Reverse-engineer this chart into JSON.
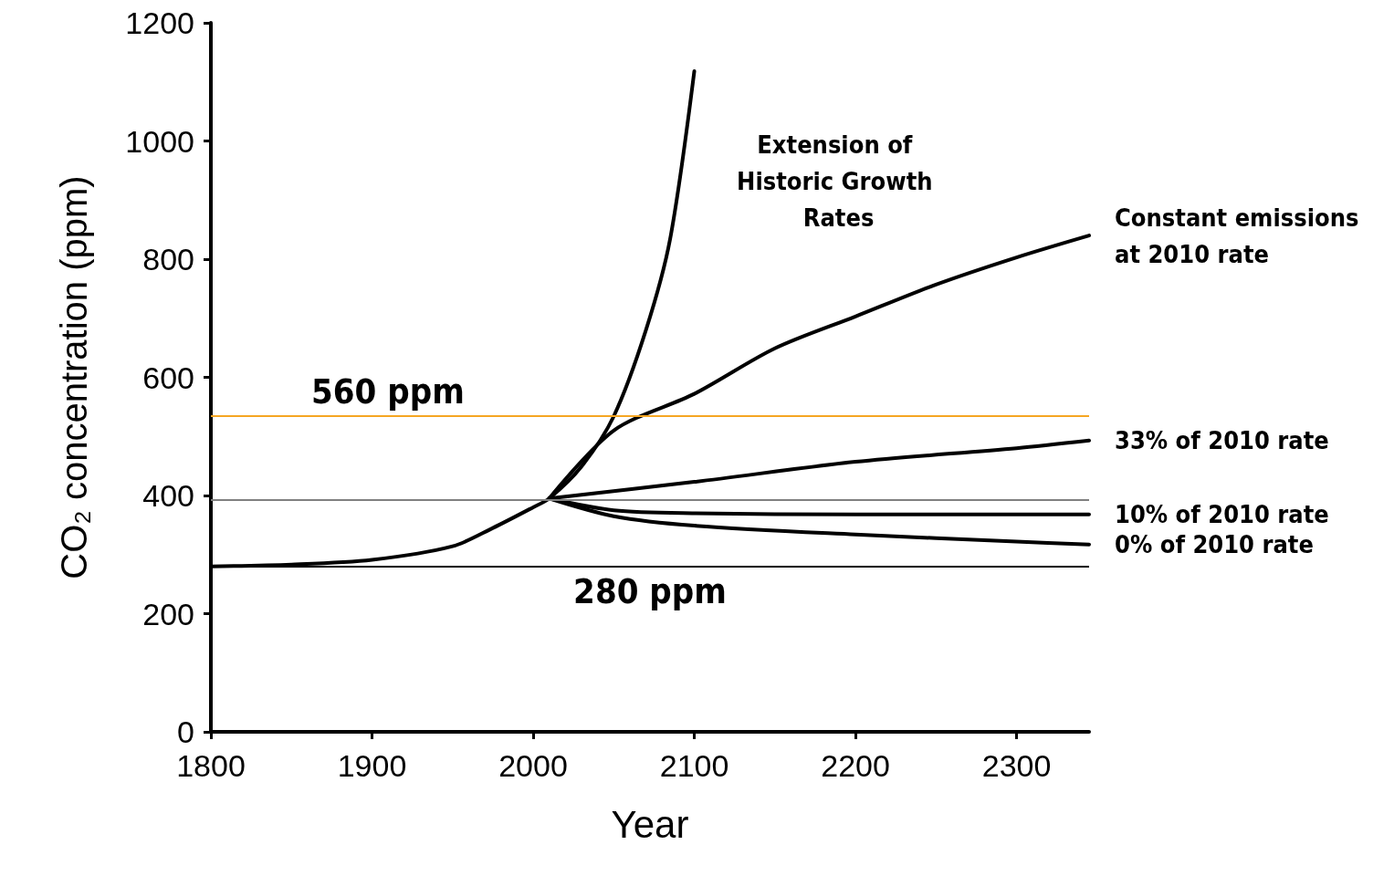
{
  "chart_data": {
    "type": "line",
    "xlabel": "Year",
    "ylabel": "CO₂ concentration (ppm)",
    "xlim": [
      1800,
      2345
    ],
    "xticks": [
      1800,
      1900,
      2000,
      2100,
      2200,
      2300
    ],
    "ylim": [
      0,
      1200
    ],
    "yticks": [
      0,
      200,
      400,
      600,
      800,
      1000,
      1200
    ],
    "grid": false,
    "legend": false,
    "marker": "none",
    "line_style": "solid",
    "series": [
      {
        "name": "Extension of Historic Growth Rates",
        "color": "#000000",
        "x": [
          1800,
          1850,
          1900,
          1950,
          1975,
          2000,
          2010,
          2030,
          2050,
          2070,
          2085,
          2100
        ],
        "values": [
          280,
          283,
          291,
          314,
          345,
          380,
          395,
          449,
          534,
          680,
          834,
          1118
        ]
      },
      {
        "name": "Constant emissions at 2010 rate",
        "color": "#000000",
        "x": [
          2010,
          2050,
          2100,
          2150,
          2200,
          2250,
          2300,
          2345
        ],
        "values": [
          395,
          510,
          572,
          649,
          703,
          757,
          803,
          840
        ]
      },
      {
        "name": "33% of 2010 rate",
        "color": "#000000",
        "x": [
          2010,
          2100,
          2200,
          2300,
          2345
        ],
        "values": [
          395,
          423,
          457,
          480,
          493
        ]
      },
      {
        "name": "10% of 2010 rate",
        "color": "#000000",
        "x": [
          2010,
          2050,
          2100,
          2200,
          2345
        ],
        "values": [
          395,
          375,
          370,
          368,
          368
        ]
      },
      {
        "name": "0% of 2010 rate",
        "color": "#000000",
        "x": [
          2010,
          2050,
          2100,
          2200,
          2300,
          2345
        ],
        "values": [
          395,
          365,
          349,
          334,
          322,
          317
        ]
      }
    ],
    "ref_lines": [
      {
        "axis": "y",
        "value": 535,
        "label": "560 ppm",
        "color": "#f5a623"
      },
      {
        "axis": "y",
        "value": 392,
        "label": null,
        "color": "#808080"
      },
      {
        "axis": "y",
        "value": 280,
        "label": "280 ppm",
        "color": "#000000"
      }
    ]
  }
}
